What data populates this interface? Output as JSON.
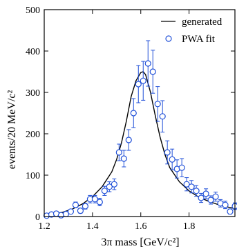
{
  "chart_data": {
    "type": "scatter",
    "xlabel": "3π mass [GeV/c²]",
    "ylabel": "events/20 MeV/c²",
    "xlim": [
      1.2,
      1.99
    ],
    "ylim": [
      0,
      500
    ],
    "xticks": [
      1.2,
      1.4,
      1.6,
      1.8
    ],
    "xtick_labels": [
      "1.2",
      "1.4",
      "1.6",
      "1.8"
    ],
    "yticks": [
      0,
      100,
      200,
      300,
      400,
      500
    ],
    "ytick_labels": [
      "0",
      "100",
      "200",
      "300",
      "400",
      "500"
    ],
    "legend_position": "top-right",
    "grid": false,
    "series": [
      {
        "name": "generated",
        "style": "line",
        "color": "#000000",
        "x": [
          1.2,
          1.24,
          1.28,
          1.32,
          1.36,
          1.4,
          1.44,
          1.48,
          1.5,
          1.52,
          1.54,
          1.56,
          1.58,
          1.6,
          1.61,
          1.62,
          1.64,
          1.66,
          1.68,
          1.7,
          1.72,
          1.76,
          1.8,
          1.84,
          1.88,
          1.92,
          1.96,
          1.99
        ],
        "y": [
          3,
          6,
          11,
          19,
          31,
          48,
          72,
          108,
          138,
          178,
          230,
          290,
          328,
          348,
          350,
          343,
          301,
          244,
          192,
          150,
          118,
          84,
          62,
          47,
          37,
          29,
          23,
          19
        ]
      },
      {
        "name": "PWA fit",
        "style": "points",
        "color": "#1f4fd8",
        "points": [
          {
            "x": 1.21,
            "y": 2,
            "err": 3
          },
          {
            "x": 1.23,
            "y": 5,
            "err": 4
          },
          {
            "x": 1.25,
            "y": 7,
            "err": 4
          },
          {
            "x": 1.27,
            "y": 3,
            "err": 3
          },
          {
            "x": 1.29,
            "y": 6,
            "err": 4
          },
          {
            "x": 1.31,
            "y": 12,
            "err": 5
          },
          {
            "x": 1.33,
            "y": 28,
            "err": 7
          },
          {
            "x": 1.35,
            "y": 14,
            "err": 6
          },
          {
            "x": 1.37,
            "y": 25,
            "err": 7
          },
          {
            "x": 1.39,
            "y": 42,
            "err": 9
          },
          {
            "x": 1.41,
            "y": 42,
            "err": 9
          },
          {
            "x": 1.43,
            "y": 35,
            "err": 9
          },
          {
            "x": 1.45,
            "y": 62,
            "err": 11
          },
          {
            "x": 1.47,
            "y": 72,
            "err": 12
          },
          {
            "x": 1.49,
            "y": 78,
            "err": 13
          },
          {
            "x": 1.51,
            "y": 155,
            "err": 20
          },
          {
            "x": 1.53,
            "y": 140,
            "err": 20
          },
          {
            "x": 1.55,
            "y": 185,
            "err": 25
          },
          {
            "x": 1.57,
            "y": 250,
            "err": 35
          },
          {
            "x": 1.59,
            "y": 320,
            "err": 45
          },
          {
            "x": 1.61,
            "y": 328,
            "err": 47
          },
          {
            "x": 1.63,
            "y": 370,
            "err": 55
          },
          {
            "x": 1.65,
            "y": 350,
            "err": 52
          },
          {
            "x": 1.67,
            "y": 272,
            "err": 42
          },
          {
            "x": 1.69,
            "y": 242,
            "err": 38
          },
          {
            "x": 1.71,
            "y": 155,
            "err": 28
          },
          {
            "x": 1.73,
            "y": 138,
            "err": 25
          },
          {
            "x": 1.75,
            "y": 115,
            "err": 22
          },
          {
            "x": 1.77,
            "y": 118,
            "err": 22
          },
          {
            "x": 1.79,
            "y": 78,
            "err": 16
          },
          {
            "x": 1.81,
            "y": 72,
            "err": 15
          },
          {
            "x": 1.83,
            "y": 62,
            "err": 13
          },
          {
            "x": 1.85,
            "y": 45,
            "err": 11
          },
          {
            "x": 1.87,
            "y": 55,
            "err": 12
          },
          {
            "x": 1.89,
            "y": 40,
            "err": 10
          },
          {
            "x": 1.91,
            "y": 48,
            "err": 11
          },
          {
            "x": 1.93,
            "y": 32,
            "err": 9
          },
          {
            "x": 1.95,
            "y": 28,
            "err": 9
          },
          {
            "x": 1.97,
            "y": 12,
            "err": 6
          },
          {
            "x": 1.99,
            "y": 25,
            "err": 8
          }
        ]
      }
    ]
  }
}
